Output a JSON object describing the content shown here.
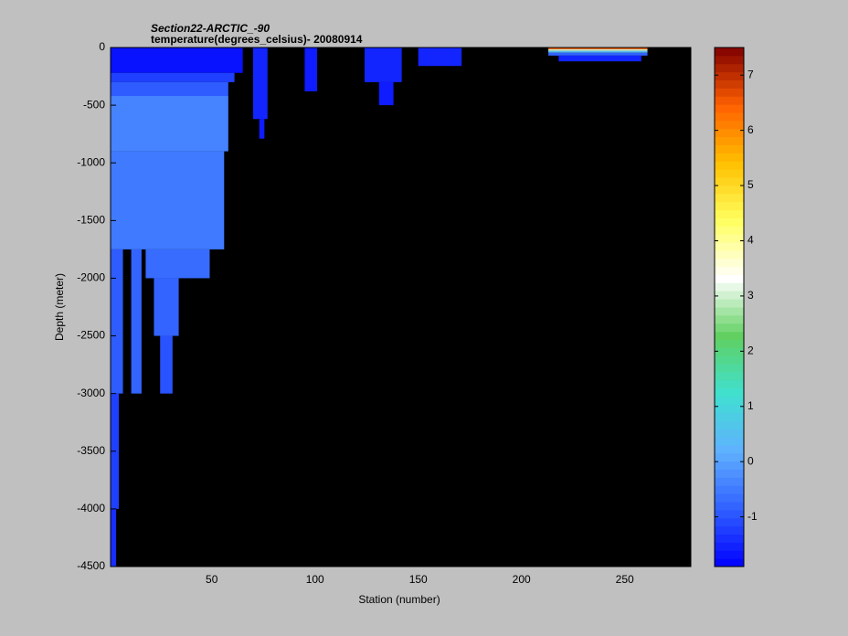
{
  "chart_data": {
    "type": "heatmap",
    "title": "Section22-ARCTIC_-90",
    "subtitle": "temperature(degrees_celsius)- 20080914",
    "xlabel": "Station (number)",
    "ylabel": "Depth (meter)",
    "xlim": [
      1,
      282
    ],
    "xticks": [
      50,
      100,
      150,
      200,
      250
    ],
    "ylim": [
      -4500,
      0
    ],
    "yticks": [
      -4500,
      -4000,
      -3500,
      -3000,
      -2500,
      -2000,
      -1500,
      -1000,
      -500,
      0
    ],
    "clim": [
      -1.9,
      7.5
    ],
    "cticks": [
      -1,
      0,
      1,
      2,
      3,
      4,
      5,
      6,
      7
    ],
    "colormap": [
      "#0000ff",
      "#3060ff",
      "#60b0ff",
      "#40e0d0",
      "#60d060",
      "#ffffff",
      "#ffff60",
      "#ffc000",
      "#ff6000",
      "#800000"
    ],
    "background": "#000000",
    "cells": [
      {
        "x": [
          1,
          65
        ],
        "y": [
          0,
          -220
        ],
        "value": -1.7
      },
      {
        "x": [
          1,
          61
        ],
        "y": [
          -220,
          -300
        ],
        "value": -1.2
      },
      {
        "x": [
          1,
          58
        ],
        "y": [
          -300,
          -420
        ],
        "value": -0.9
      },
      {
        "x": [
          1,
          58
        ],
        "y": [
          -420,
          -900
        ],
        "value": -0.4
      },
      {
        "x": [
          1,
          56
        ],
        "y": [
          -900,
          -1750
        ],
        "value": -0.5
      },
      {
        "x": [
          18,
          49
        ],
        "y": [
          -1750,
          -2000
        ],
        "value": -0.7
      },
      {
        "x": [
          22,
          34
        ],
        "y": [
          -2000,
          -2500
        ],
        "value": -0.8
      },
      {
        "x": [
          25,
          31
        ],
        "y": [
          -2500,
          -3000
        ],
        "value": -1.0
      },
      {
        "x": [
          1,
          7
        ],
        "y": [
          -1750,
          -3000
        ],
        "value": -0.9
      },
      {
        "x": [
          11,
          16
        ],
        "y": [
          -1750,
          -3000
        ],
        "value": -0.8
      },
      {
        "x": [
          1,
          5
        ],
        "y": [
          -3000,
          -4000
        ],
        "value": -1.2
      },
      {
        "x": [
          1,
          3.7
        ],
        "y": [
          -4000,
          -4500
        ],
        "value": -1.4
      },
      {
        "x": [
          70,
          77
        ],
        "y": [
          0,
          -620
        ],
        "value": -1.5
      },
      {
        "x": [
          73,
          75.5
        ],
        "y": [
          -620,
          -790
        ],
        "value": -1.6
      },
      {
        "x": [
          95,
          101
        ],
        "y": [
          0,
          -380
        ],
        "value": -1.6
      },
      {
        "x": [
          124,
          142
        ],
        "y": [
          0,
          -300
        ],
        "value": -1.5
      },
      {
        "x": [
          131,
          138
        ],
        "y": [
          -300,
          -500
        ],
        "value": -1.6
      },
      {
        "x": [
          150,
          171
        ],
        "y": [
          0,
          -160
        ],
        "value": -1.5
      },
      {
        "x": [
          213,
          261
        ],
        "y": [
          0,
          -15
        ],
        "value": 6.5
      },
      {
        "x": [
          213,
          261
        ],
        "y": [
          -15,
          -30
        ],
        "value": 3
      },
      {
        "x": [
          213,
          261
        ],
        "y": [
          -30,
          -45
        ],
        "value": 0.5
      },
      {
        "x": [
          213,
          261
        ],
        "y": [
          -45,
          -70
        ],
        "value": -0.8
      },
      {
        "x": [
          218,
          258
        ],
        "y": [
          -70,
          -120
        ],
        "value": -1.5
      }
    ]
  }
}
